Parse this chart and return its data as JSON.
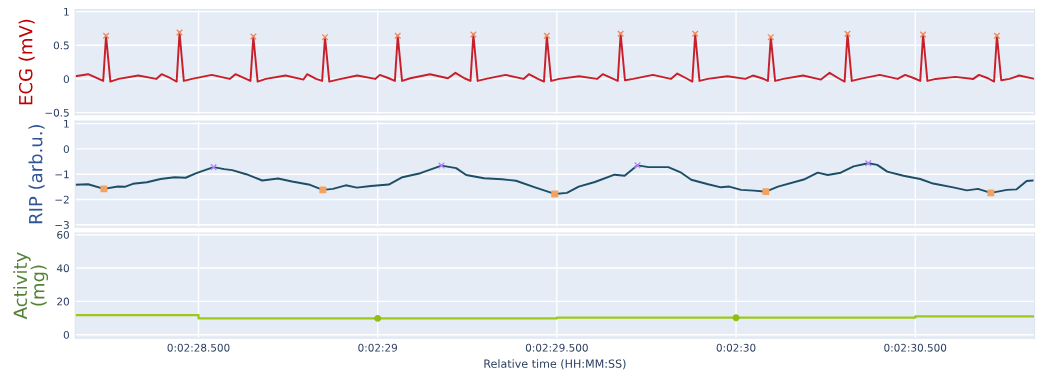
{
  "chart_data": [
    {
      "type": "line",
      "ylabel": "ECG (mV)",
      "xlim": [
        148.156,
        150.833
      ],
      "ylim": [
        -0.53,
        1.03
      ],
      "xticks": [
        148.5,
        149,
        149.5,
        150,
        150.5
      ],
      "yticks": [
        {
          "value": -0.5,
          "label": "−0.5"
        },
        0,
        0.5,
        1
      ],
      "tick_labels": "y",
      "grid": true,
      "series": [
        {
          "color": "#c8202a",
          "x": [
            148.156,
            148.192,
            148.217,
            148.234,
            148.242,
            148.254,
            148.277,
            148.332,
            148.382,
            148.397,
            148.422,
            148.439,
            148.447,
            148.459,
            148.482,
            148.537,
            148.587,
            148.603,
            148.628,
            148.645,
            148.653,
            148.665,
            148.688,
            148.743,
            148.793,
            148.803,
            148.828,
            148.845,
            148.853,
            148.865,
            148.888,
            148.943,
            148.993,
            149.006,
            149.031,
            149.048,
            149.056,
            149.068,
            149.091,
            149.146,
            149.196,
            149.217,
            149.242,
            149.259,
            149.267,
            149.279,
            149.302,
            149.357,
            149.407,
            149.422,
            149.447,
            149.464,
            149.472,
            149.484,
            149.507,
            149.562,
            149.612,
            149.628,
            149.653,
            149.67,
            149.678,
            149.69,
            149.713,
            149.768,
            149.818,
            149.836,
            149.861,
            149.878,
            149.886,
            149.898,
            149.921,
            149.976,
            150.026,
            150.047,
            150.072,
            150.089,
            150.097,
            150.109,
            150.132,
            150.187,
            150.237,
            150.261,
            150.286,
            150.303,
            150.311,
            150.323,
            150.346,
            150.401,
            150.451,
            150.472,
            150.497,
            150.514,
            150.522,
            150.534,
            150.557,
            150.612,
            150.662,
            150.678,
            150.703,
            150.72,
            150.728,
            150.74,
            150.763,
            150.79,
            150.833
          ],
          "values": [
            0.04,
            0.07,
            0.01,
            -0.03,
            0.64,
            -0.04,
            0.0,
            0.05,
            0.0,
            0.07,
            0.01,
            -0.04,
            0.69,
            -0.03,
            0.0,
            0.06,
            0.0,
            0.07,
            0.01,
            -0.03,
            0.63,
            -0.04,
            0.0,
            0.05,
            -0.01,
            0.07,
            0.0,
            -0.03,
            0.62,
            -0.04,
            -0.01,
            0.05,
            0.0,
            0.06,
            0.01,
            -0.03,
            0.64,
            -0.03,
            0.01,
            0.07,
            0.01,
            0.09,
            0.01,
            -0.03,
            0.66,
            -0.03,
            0.0,
            0.06,
            0.0,
            0.07,
            0.0,
            -0.04,
            0.64,
            -0.03,
            0.0,
            0.04,
            0.0,
            0.07,
            0.01,
            -0.03,
            0.67,
            -0.02,
            0.0,
            0.06,
            0.0,
            0.08,
            0.01,
            -0.04,
            0.67,
            -0.03,
            0.0,
            0.04,
            0.0,
            0.05,
            0.01,
            -0.03,
            0.62,
            -0.03,
            0.0,
            0.05,
            -0.01,
            0.09,
            0.01,
            -0.04,
            0.67,
            -0.03,
            0.0,
            0.06,
            0.0,
            0.06,
            0.01,
            -0.03,
            0.66,
            -0.03,
            0.0,
            0.03,
            0.0,
            0.06,
            0.01,
            -0.04,
            0.64,
            -0.02,
            0.0,
            0.05,
            0.0
          ]
        },
        {
          "type": "scatter",
          "marker": "cross",
          "color": "#f08a5d",
          "x": [
            148.242,
            148.447,
            148.653,
            148.853,
            149.056,
            149.267,
            149.472,
            149.678,
            149.886,
            150.097,
            150.311,
            150.522,
            150.728
          ],
          "values": [
            0.64,
            0.69,
            0.63,
            0.62,
            0.64,
            0.66,
            0.64,
            0.67,
            0.67,
            0.62,
            0.67,
            0.66,
            0.64
          ]
        }
      ]
    },
    {
      "type": "line",
      "ylabel": "RIP (arb.u.)",
      "xlim": [
        148.156,
        150.833
      ],
      "ylim": [
        -3.1,
        1.1
      ],
      "xticks": [
        148.5,
        149,
        149.5,
        150,
        150.5
      ],
      "yticks": [
        {
          "value": -3,
          "label": "−3"
        },
        {
          "value": -2,
          "label": "−2"
        },
        {
          "value": -1,
          "label": "−1"
        },
        0,
        1
      ],
      "tick_labels": "y",
      "grid": true,
      "series": [
        {
          "color": "#1d4e66",
          "x": [
            148.156,
            148.192,
            148.236,
            148.275,
            148.294,
            148.317,
            148.356,
            148.394,
            148.433,
            148.464,
            148.494,
            148.542,
            148.572,
            148.594,
            148.633,
            148.678,
            148.722,
            148.761,
            148.811,
            148.847,
            148.875,
            148.911,
            148.942,
            148.981,
            149.031,
            149.069,
            149.119,
            149.178,
            149.219,
            149.247,
            149.297,
            149.347,
            149.386,
            149.439,
            149.494,
            149.528,
            149.561,
            149.606,
            149.661,
            149.689,
            149.725,
            149.756,
            149.811,
            149.847,
            149.875,
            149.922,
            149.958,
            149.981,
            150.014,
            150.05,
            150.083,
            150.117,
            150.189,
            150.228,
            150.256,
            150.292,
            150.328,
            150.369,
            150.394,
            150.422,
            150.467,
            150.514,
            150.55,
            150.606,
            150.644,
            150.675,
            150.711,
            150.756,
            150.783,
            150.811,
            150.828
          ],
          "values": [
            -1.42,
            -1.4,
            -1.58,
            -1.49,
            -1.5,
            -1.38,
            -1.32,
            -1.19,
            -1.12,
            -1.14,
            -0.96,
            -0.72,
            -0.8,
            -0.84,
            -1.0,
            -1.25,
            -1.17,
            -1.29,
            -1.42,
            -1.62,
            -1.58,
            -1.44,
            -1.53,
            -1.47,
            -1.41,
            -1.12,
            -0.96,
            -0.66,
            -0.76,
            -1.03,
            -1.16,
            -1.2,
            -1.26,
            -1.52,
            -1.78,
            -1.74,
            -1.49,
            -1.31,
            -1.02,
            -1.06,
            -0.65,
            -0.72,
            -0.72,
            -0.94,
            -1.22,
            -1.4,
            -1.52,
            -1.49,
            -1.62,
            -1.65,
            -1.69,
            -1.49,
            -1.21,
            -0.94,
            -1.03,
            -0.94,
            -0.69,
            -0.57,
            -0.63,
            -0.9,
            -1.06,
            -1.19,
            -1.37,
            -1.52,
            -1.64,
            -1.58,
            -1.74,
            -1.62,
            -1.6,
            -1.27,
            -1.25
          ]
        },
        {
          "type": "scatter",
          "marker": "square",
          "color": "#f4a261",
          "x": [
            148.236,
            148.847,
            149.494,
            150.083,
            150.711
          ],
          "values": [
            -1.58,
            -1.62,
            -1.78,
            -1.69,
            -1.74
          ]
        },
        {
          "type": "scatter",
          "marker": "cross",
          "color": "#b388ff",
          "x": [
            148.542,
            149.178,
            149.725,
            150.369
          ],
          "values": [
            -0.72,
            -0.66,
            -0.65,
            -0.57
          ]
        }
      ]
    },
    {
      "type": "step",
      "ylabel": "Activity\n(mg)",
      "xlabel": "Relative time (HH:MM:SS)",
      "xlim": [
        148.156,
        150.833
      ],
      "ylim": [
        -2,
        61
      ],
      "xticks": [
        {
          "value": 148.5,
          "label": "0:02:28.500"
        },
        {
          "value": 149,
          "label": "0:02:29"
        },
        {
          "value": 149.5,
          "label": "0:02:29.500"
        },
        {
          "value": 150,
          "label": "0:02:30"
        },
        {
          "value": 150.5,
          "label": "0:02:30.500"
        }
      ],
      "yticks": [
        0,
        20,
        40,
        60
      ],
      "grid": true,
      "series": [
        {
          "color": "#9ec71c",
          "x": [
            148.156,
            148.5,
            149,
            149.5,
            150,
            150.5,
            150.833
          ],
          "values": [
            11.8,
            9.8,
            9.8,
            10.2,
            10.2,
            11.0,
            11.0
          ]
        },
        {
          "type": "scatter",
          "marker": "circle",
          "color": "#8fbf10",
          "x": [
            149,
            150
          ],
          "values": [
            9.8,
            10.2
          ]
        }
      ]
    }
  ]
}
